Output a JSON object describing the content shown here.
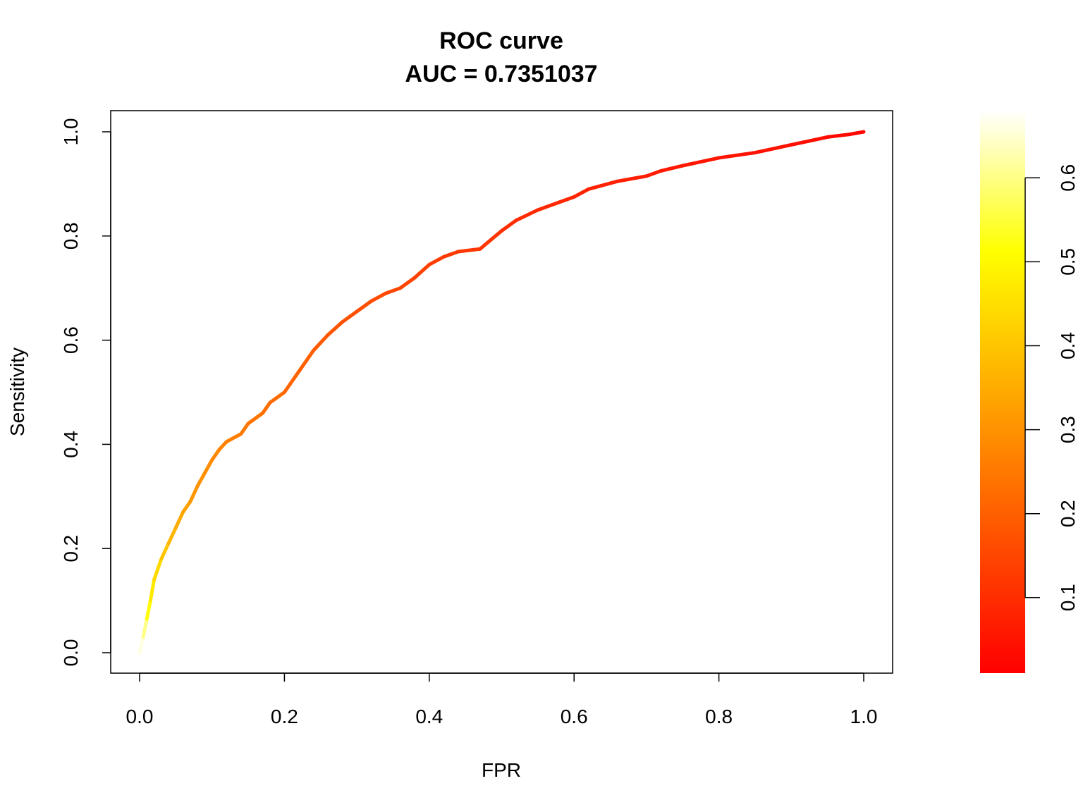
{
  "chart_data": {
    "type": "line",
    "title": "ROC curve",
    "subtitle": "AUC = 0.7351037",
    "xlabel": "FPR",
    "ylabel": "Sensitivity",
    "xlim": [
      0.0,
      1.0
    ],
    "ylim": [
      0.0,
      1.0
    ],
    "x_ticks": [
      "0.0",
      "0.2",
      "0.4",
      "0.6",
      "0.8",
      "1.0"
    ],
    "y_ticks": [
      "0.0",
      "0.2",
      "0.4",
      "0.6",
      "0.8",
      "1.0"
    ],
    "grid": false,
    "color_scale": {
      "ticks": [
        "0.1",
        "0.2",
        "0.3",
        "0.4",
        "0.5",
        "0.6"
      ],
      "range": [
        0.01,
        0.68
      ],
      "palette": [
        "#ff0000",
        "#ff8000",
        "#ffff00",
        "#ffffff"
      ]
    },
    "series": [
      {
        "x": [
          0.0,
          0.005,
          0.01,
          0.015,
          0.02,
          0.03,
          0.04,
          0.05,
          0.06,
          0.07,
          0.08,
          0.09,
          0.1,
          0.11,
          0.12,
          0.14,
          0.15,
          0.17,
          0.18,
          0.2,
          0.22,
          0.24,
          0.26,
          0.28,
          0.3,
          0.32,
          0.34,
          0.36,
          0.38,
          0.4,
          0.42,
          0.44,
          0.47,
          0.5,
          0.52,
          0.55,
          0.58,
          0.6,
          0.62,
          0.66,
          0.7,
          0.72,
          0.75,
          0.8,
          0.85,
          0.9,
          0.95,
          0.98,
          1.0
        ],
        "y": [
          0.0,
          0.03,
          0.065,
          0.1,
          0.14,
          0.18,
          0.21,
          0.24,
          0.27,
          0.29,
          0.32,
          0.345,
          0.37,
          0.39,
          0.405,
          0.42,
          0.44,
          0.46,
          0.48,
          0.5,
          0.54,
          0.58,
          0.61,
          0.635,
          0.655,
          0.675,
          0.69,
          0.7,
          0.72,
          0.745,
          0.76,
          0.77,
          0.775,
          0.81,
          0.83,
          0.85,
          0.865,
          0.875,
          0.89,
          0.905,
          0.915,
          0.925,
          0.935,
          0.95,
          0.96,
          0.975,
          0.99,
          0.995,
          1.0
        ],
        "color_values": [
          0.66,
          0.6,
          0.52,
          0.47,
          0.44,
          0.4,
          0.37,
          0.35,
          0.33,
          0.31,
          0.3,
          0.29,
          0.28,
          0.27,
          0.26,
          0.25,
          0.24,
          0.23,
          0.22,
          0.21,
          0.2,
          0.19,
          0.18,
          0.17,
          0.165,
          0.16,
          0.15,
          0.145,
          0.14,
          0.13,
          0.125,
          0.12,
          0.115,
          0.1,
          0.095,
          0.09,
          0.085,
          0.08,
          0.075,
          0.07,
          0.065,
          0.06,
          0.055,
          0.05,
          0.045,
          0.035,
          0.025,
          0.02,
          0.015
        ]
      }
    ]
  }
}
